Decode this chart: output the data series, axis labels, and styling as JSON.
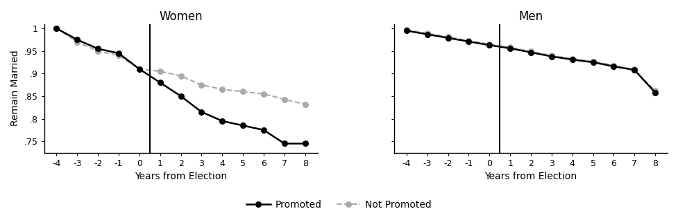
{
  "women_x": [
    -4,
    -3,
    -2,
    -1,
    0,
    1,
    2,
    3,
    4,
    5,
    6,
    7,
    8
  ],
  "women_promoted": [
    1.0,
    0.975,
    0.955,
    0.945,
    0.91,
    0.88,
    0.85,
    0.815,
    0.795,
    0.785,
    0.775,
    0.745,
    0.745
  ],
  "women_not_promoted": [
    1.0,
    0.97,
    0.95,
    0.94,
    0.91,
    0.905,
    0.895,
    0.875,
    0.865,
    0.86,
    0.855,
    0.843,
    0.832
  ],
  "men_x": [
    -4,
    -3,
    -2,
    -1,
    0,
    1,
    2,
    3,
    4,
    5,
    6,
    7,
    8
  ],
  "men_promoted": [
    0.995,
    0.987,
    0.979,
    0.971,
    0.963,
    0.956,
    0.947,
    0.938,
    0.931,
    0.925,
    0.916,
    0.908,
    0.858
  ],
  "men_not_promoted": [
    0.997,
    0.989,
    0.981,
    0.973,
    0.965,
    0.958,
    0.949,
    0.94,
    0.933,
    0.927,
    0.918,
    0.909,
    0.862
  ],
  "promoted_color": "#000000",
  "not_promoted_color": "#aaaaaa",
  "title_women": "Women",
  "title_men": "Men",
  "xlabel": "Years from Election",
  "ylabel": "Remain Married",
  "yticks_women": [
    0.75,
    0.8,
    0.85,
    0.9,
    0.95,
    1.0
  ],
  "ytick_labels_women": [
    ".75",
    ".8",
    ".85",
    ".9",
    ".95",
    "1"
  ],
  "ylim_women": [
    0.725,
    1.01
  ],
  "yticks_men": [
    0.75,
    0.8,
    0.85,
    0.9,
    0.95,
    1.0
  ],
  "ytick_labels_men": [
    ".75",
    ".8",
    ".85",
    ".9",
    ".95",
    "1"
  ],
  "ylim_men": [
    0.725,
    1.01
  ],
  "xlim": [
    -4.6,
    8.6
  ],
  "xticks": [
    -4,
    -3,
    -2,
    -1,
    0,
    1,
    2,
    3,
    4,
    5,
    6,
    7,
    8
  ],
  "vline_x": 0.5,
  "legend_promoted": "Promoted",
  "legend_not_promoted": "Not Promoted",
  "background_color": "#ffffff",
  "figwidth": 9.77,
  "figheight": 3.15,
  "dpi": 100
}
